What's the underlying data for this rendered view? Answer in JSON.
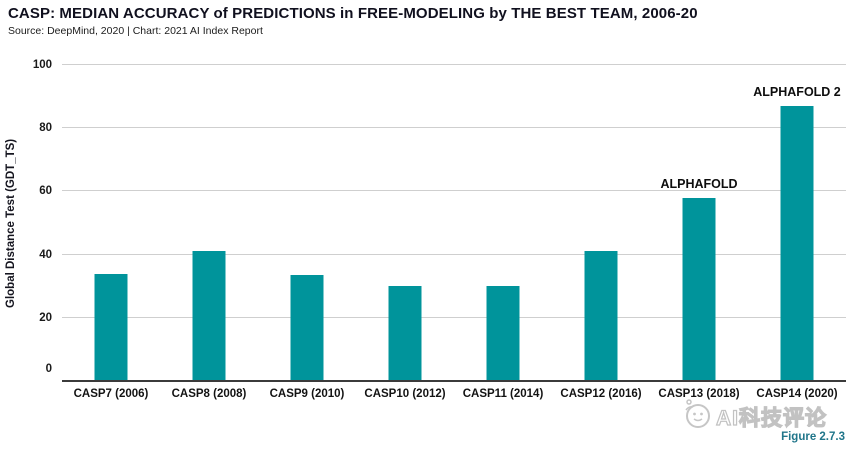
{
  "header": {
    "title": "CASP: MEDIAN ACCURACY of PREDICTIONS in FREE-MODELING by THE BEST TEAM, 2006-20",
    "source_line": "Source: DeepMind, 2020 | Chart: 2021 AI Index Report"
  },
  "colors": {
    "bar": "#00949b",
    "grid_line": "#cfcfcf",
    "axis_line": "#3b3b3b",
    "title_text": "#10101e",
    "figure_caption": "#20768a",
    "watermark_outline": "#c2c2c2"
  },
  "chart_data": {
    "type": "bar",
    "title": "CASP: MEDIAN ACCURACY of PREDICTIONS in FREE-MODELING by THE BEST TEAM, 2006-20",
    "subtitle": "Source: DeepMind, 2020 | Chart: 2021 AI Index Report",
    "categories": [
      "CASP7 (2006)",
      "CASP8 (2008)",
      "CASP9 (2010)",
      "CASP10 (2012)",
      "CASP11 (2014)",
      "CASP12 (2016)",
      "CASP13 (2018)",
      "CASP14 (2020)"
    ],
    "values": [
      34,
      41,
      33.5,
      30,
      30,
      41,
      58,
      87
    ],
    "xlabel": "",
    "ylabel": "Global Distance Test (GDT_TS)",
    "ylim": [
      0,
      100
    ],
    "yticks": [
      0,
      20,
      40,
      60,
      80,
      100
    ],
    "grid": true,
    "legend": "none",
    "bar_color": "#00949b",
    "annotations": [
      {
        "category_index": 6,
        "label": "ALPHAFOLD"
      },
      {
        "category_index": 7,
        "label": "ALPHAFOLD 2"
      }
    ]
  },
  "footer": {
    "figure_caption": "Figure 2.7.3",
    "watermark_text": "AI科技评论"
  }
}
